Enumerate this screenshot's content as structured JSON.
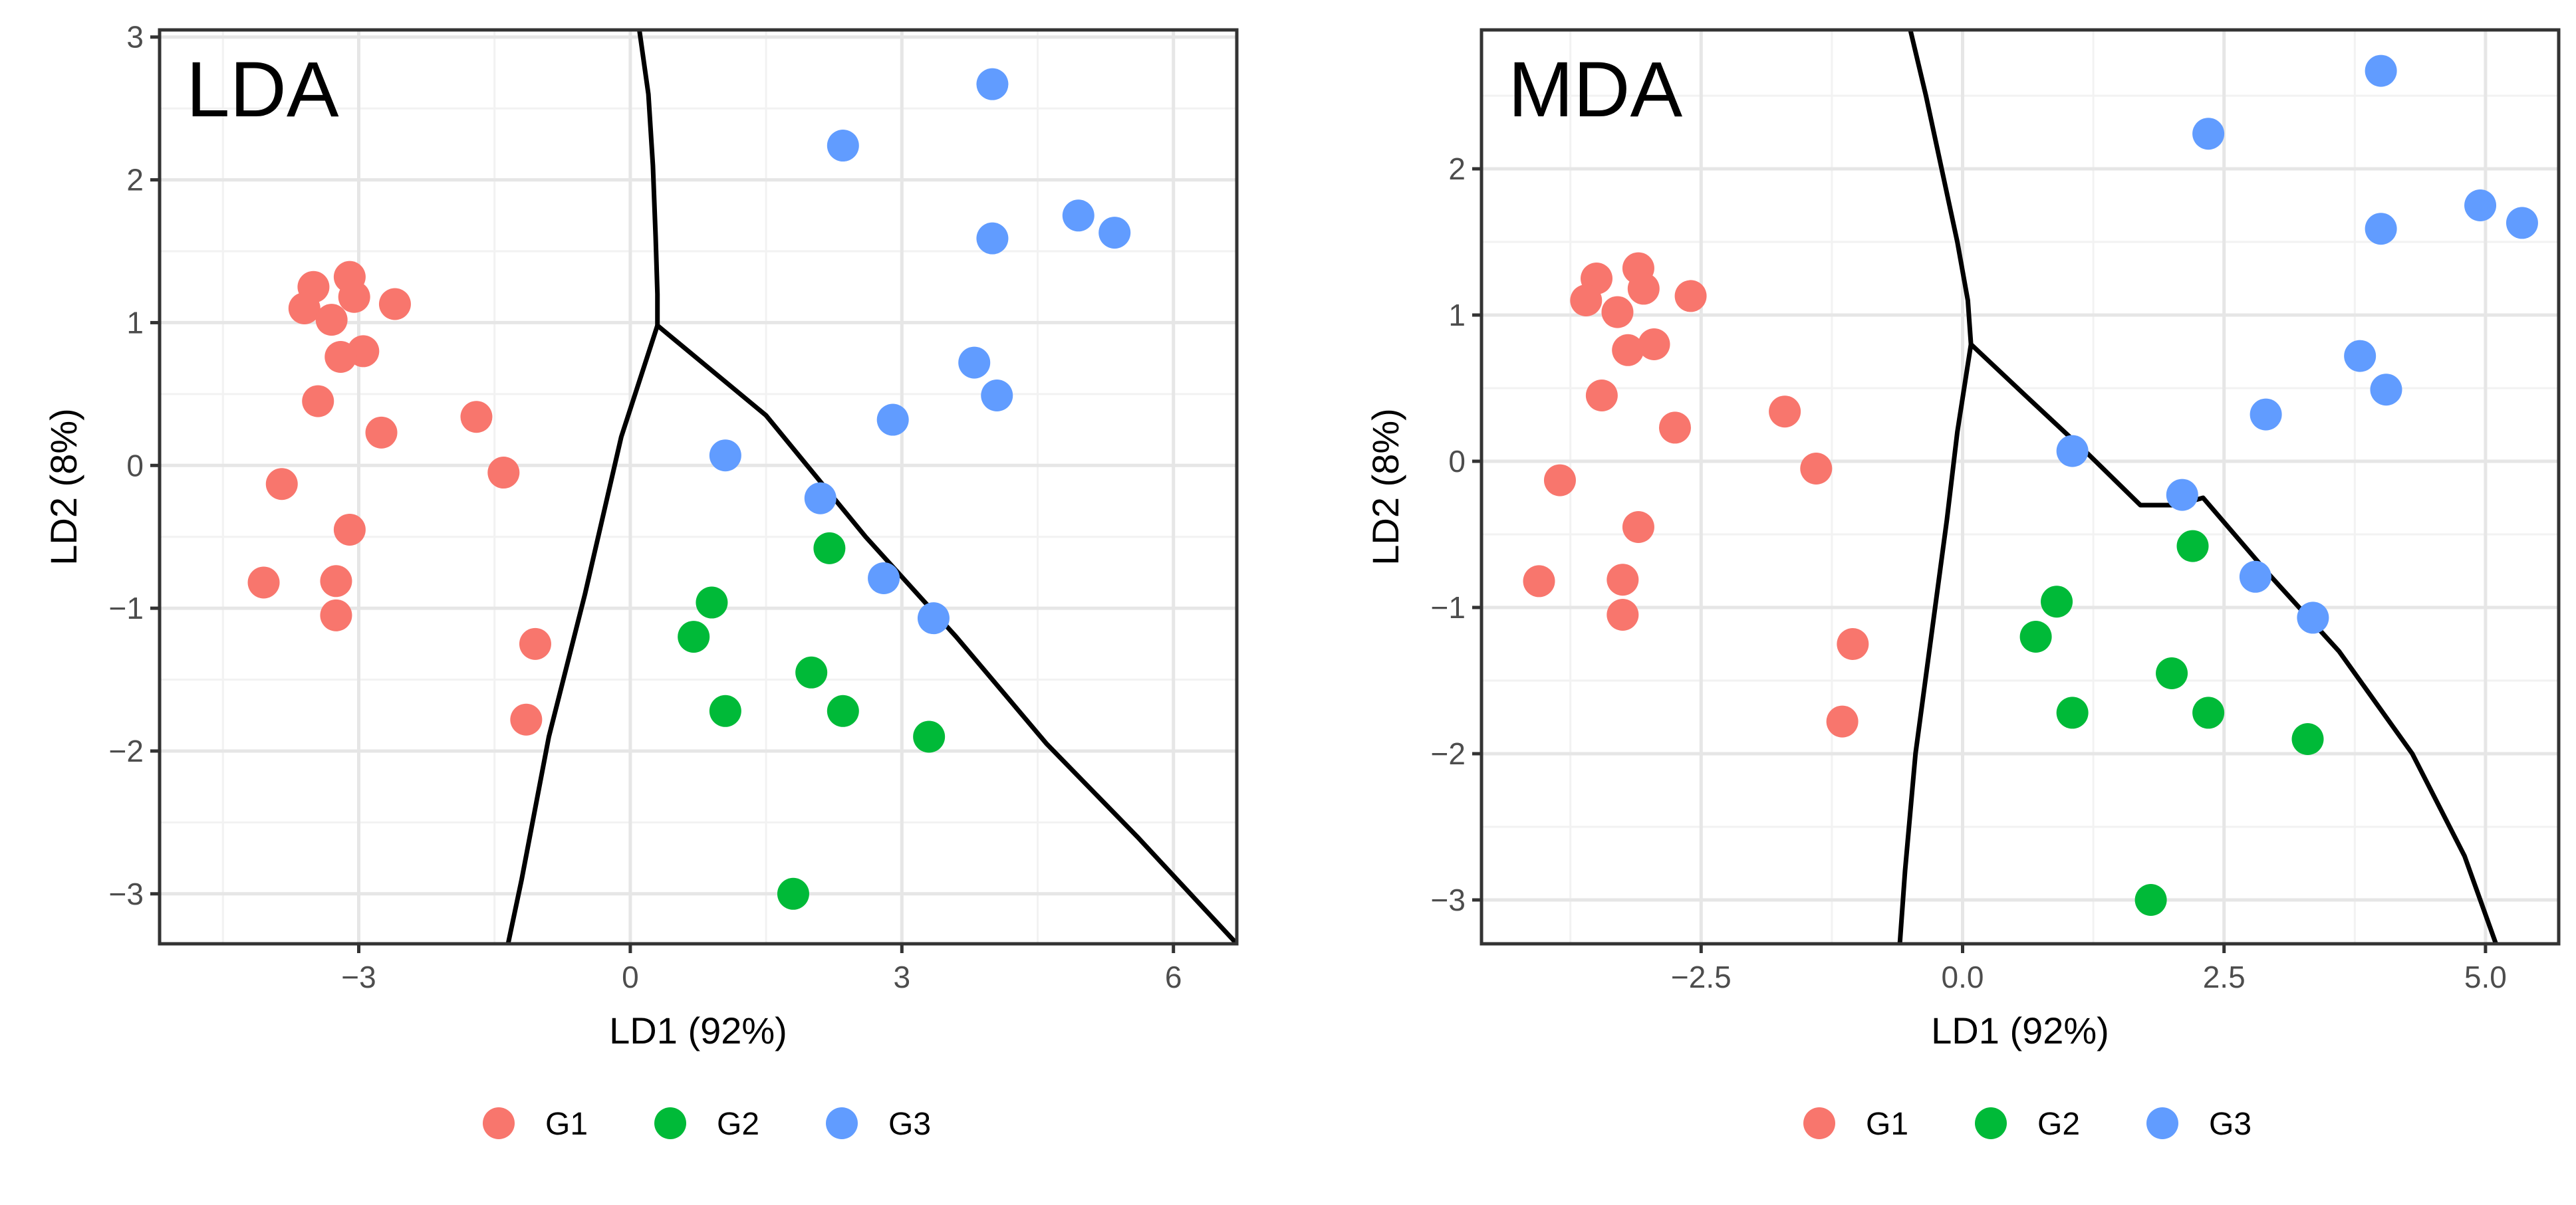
{
  "chart_data": [
    {
      "type": "scatter",
      "title": "LDA",
      "xlabel": "LD1 (92%)",
      "ylabel": "LD2 (8%)",
      "xlim": [
        -5.2,
        6.7
      ],
      "ylim": [
        -3.35,
        3.05
      ],
      "xticks": [
        -3,
        0,
        3,
        6
      ],
      "xtick_labels": [
        "−3",
        "0",
        "3",
        "6"
      ],
      "yticks": [
        -3,
        -2,
        -1,
        0,
        1,
        2,
        3
      ],
      "ytick_labels": [
        "−3",
        "−2",
        "−1",
        "0",
        "1",
        "2",
        "3"
      ],
      "grid": true,
      "legend_position": "bottom",
      "series": [
        {
          "name": "G1",
          "color": "#F8766D",
          "points": [
            [
              -3.5,
              1.25
            ],
            [
              -3.1,
              1.32
            ],
            [
              -3.05,
              1.18
            ],
            [
              -2.6,
              1.13
            ],
            [
              -3.6,
              1.1
            ],
            [
              -3.3,
              1.02
            ],
            [
              -2.95,
              0.8
            ],
            [
              -3.2,
              0.76
            ],
            [
              -3.45,
              0.45
            ],
            [
              -2.75,
              0.23
            ],
            [
              -1.7,
              0.34
            ],
            [
              -1.4,
              -0.05
            ],
            [
              -3.85,
              -0.13
            ],
            [
              -3.1,
              -0.45
            ],
            [
              -4.05,
              -0.82
            ],
            [
              -3.25,
              -0.81
            ],
            [
              -3.25,
              -1.05
            ],
            [
              -1.05,
              -1.25
            ],
            [
              -1.15,
              -1.78
            ]
          ]
        },
        {
          "name": "G2",
          "color": "#00BA38",
          "points": [
            [
              2.2,
              -0.58
            ],
            [
              0.9,
              -0.96
            ],
            [
              0.7,
              -1.2
            ],
            [
              2.0,
              -1.45
            ],
            [
              1.05,
              -1.72
            ],
            [
              2.35,
              -1.72
            ],
            [
              3.3,
              -1.9
            ],
            [
              1.8,
              -3.0
            ]
          ]
        },
        {
          "name": "G3",
          "color": "#619CFF",
          "points": [
            [
              4.0,
              2.67
            ],
            [
              2.35,
              2.24
            ],
            [
              4.0,
              1.59
            ],
            [
              4.95,
              1.75
            ],
            [
              5.35,
              1.63
            ],
            [
              3.8,
              0.72
            ],
            [
              4.05,
              0.49
            ],
            [
              2.9,
              0.32
            ],
            [
              1.05,
              0.07
            ],
            [
              2.1,
              -0.23
            ],
            [
              2.8,
              -0.79
            ],
            [
              3.35,
              -1.07
            ]
          ]
        }
      ],
      "boundaries": [
        [
          [
            0.1,
            3.05
          ],
          [
            0.2,
            2.6
          ],
          [
            0.25,
            2.1
          ],
          [
            0.28,
            1.6
          ],
          [
            0.3,
            1.2
          ],
          [
            0.3,
            0.98
          ]
        ],
        [
          [
            0.3,
            0.98
          ],
          [
            -0.1,
            0.2
          ],
          [
            -0.5,
            -0.9
          ],
          [
            -0.9,
            -1.9
          ],
          [
            -1.2,
            -2.9
          ],
          [
            -1.35,
            -3.35
          ]
        ],
        [
          [
            0.3,
            0.98
          ],
          [
            1.5,
            0.35
          ],
          [
            2.6,
            -0.5
          ],
          [
            3.6,
            -1.2
          ],
          [
            4.6,
            -1.95
          ],
          [
            5.6,
            -2.6
          ],
          [
            6.7,
            -3.35
          ]
        ]
      ]
    },
    {
      "type": "scatter",
      "title": "MDA",
      "xlabel": "LD1 (92%)",
      "ylabel": "LD2 (8%)",
      "xlim": [
        -4.6,
        5.7
      ],
      "ylim": [
        -3.3,
        2.95
      ],
      "xticks": [
        -2.5,
        0.0,
        2.5,
        5.0
      ],
      "xtick_labels": [
        "−2.5",
        "0.0",
        "2.5",
        "5.0"
      ],
      "yticks": [
        -3,
        -2,
        -1,
        0,
        1,
        2
      ],
      "ytick_labels": [
        "−3",
        "−2",
        "−1",
        "0",
        "1",
        "2"
      ],
      "grid": true,
      "legend_position": "bottom",
      "series": [
        {
          "name": "G1",
          "color": "#F8766D",
          "points": [
            [
              -3.5,
              1.25
            ],
            [
              -3.1,
              1.32
            ],
            [
              -3.05,
              1.18
            ],
            [
              -2.6,
              1.13
            ],
            [
              -3.6,
              1.1
            ],
            [
              -3.3,
              1.02
            ],
            [
              -2.95,
              0.8
            ],
            [
              -3.2,
              0.76
            ],
            [
              -3.45,
              0.45
            ],
            [
              -2.75,
              0.23
            ],
            [
              -1.7,
              0.34
            ],
            [
              -1.4,
              -0.05
            ],
            [
              -3.85,
              -0.13
            ],
            [
              -3.1,
              -0.45
            ],
            [
              -4.05,
              -0.82
            ],
            [
              -3.25,
              -0.81
            ],
            [
              -3.25,
              -1.05
            ],
            [
              -1.05,
              -1.25
            ],
            [
              -1.15,
              -1.78
            ]
          ]
        },
        {
          "name": "G2",
          "color": "#00BA38",
          "points": [
            [
              2.2,
              -0.58
            ],
            [
              0.9,
              -0.96
            ],
            [
              0.7,
              -1.2
            ],
            [
              2.0,
              -1.45
            ],
            [
              1.05,
              -1.72
            ],
            [
              2.35,
              -1.72
            ],
            [
              3.3,
              -1.9
            ],
            [
              1.8,
              -3.0
            ]
          ]
        },
        {
          "name": "G3",
          "color": "#619CFF",
          "points": [
            [
              4.0,
              2.67
            ],
            [
              2.35,
              2.24
            ],
            [
              4.0,
              1.59
            ],
            [
              4.95,
              1.75
            ],
            [
              5.35,
              1.63
            ],
            [
              3.8,
              0.72
            ],
            [
              4.05,
              0.49
            ],
            [
              2.9,
              0.32
            ],
            [
              1.05,
              0.07
            ],
            [
              2.1,
              -0.23
            ],
            [
              2.8,
              -0.79
            ],
            [
              3.35,
              -1.07
            ]
          ]
        }
      ],
      "boundaries": [
        [
          [
            -0.5,
            2.95
          ],
          [
            -0.35,
            2.5
          ],
          [
            -0.2,
            2.0
          ],
          [
            -0.05,
            1.5
          ],
          [
            0.05,
            1.1
          ],
          [
            0.08,
            0.8
          ]
        ],
        [
          [
            0.08,
            0.8
          ],
          [
            -0.05,
            0.2
          ],
          [
            -0.15,
            -0.4
          ],
          [
            -0.3,
            -1.2
          ],
          [
            -0.45,
            -2.0
          ],
          [
            -0.55,
            -2.8
          ],
          [
            -0.6,
            -3.3
          ]
        ],
        [
          [
            0.08,
            0.8
          ],
          [
            0.6,
            0.45
          ],
          [
            1.2,
            0.05
          ],
          [
            1.7,
            -0.3
          ],
          [
            2.05,
            -0.3
          ],
          [
            2.3,
            -0.25
          ],
          [
            2.9,
            -0.75
          ],
          [
            3.6,
            -1.3
          ],
          [
            4.3,
            -2.0
          ],
          [
            4.8,
            -2.7
          ],
          [
            5.1,
            -3.3
          ]
        ]
      ]
    }
  ]
}
